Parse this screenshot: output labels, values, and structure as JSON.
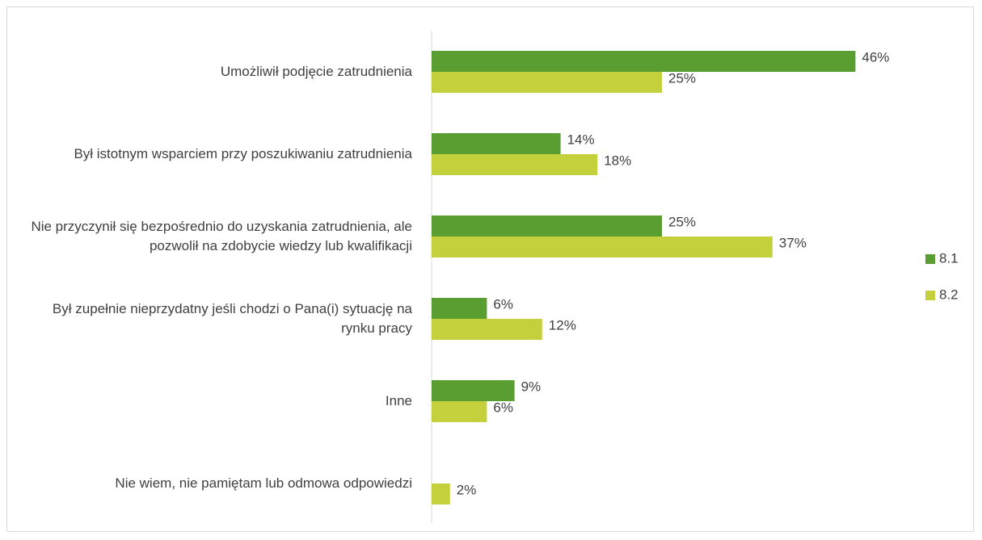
{
  "chart_data": {
    "type": "bar",
    "orientation": "horizontal",
    "categories": [
      "Umożliwił podjęcie zatrudnienia",
      "Był istotnym wsparciem przy poszukiwaniu zatrudnienia",
      "Nie przyczynił się bezpośrednio do uzyskania zatrudnienia, ale pozwolił na zdobycie wiedzy lub kwalifikacji",
      "Był zupełnie nieprzydatny jeśli chodzi o Pana(i) sytuację na rynku pracy",
      "Inne",
      "Nie wiem, nie pamiętam lub odmowa odpowiedzi"
    ],
    "series": [
      {
        "name": "8.1",
        "color": "#5a9e32",
        "values": [
          46,
          14,
          25,
          6,
          9,
          null
        ],
        "value_labels": [
          "46%",
          "14%",
          "25%",
          "6%",
          "9%",
          null
        ]
      },
      {
        "name": "8.2",
        "color": "#c5d13c",
        "values": [
          25,
          18,
          37,
          12,
          6,
          2
        ],
        "value_labels": [
          "25%",
          "18%",
          "37%",
          "12%",
          "6%",
          "2%"
        ]
      }
    ],
    "xlim": [
      0,
      50
    ],
    "legend": "right"
  }
}
